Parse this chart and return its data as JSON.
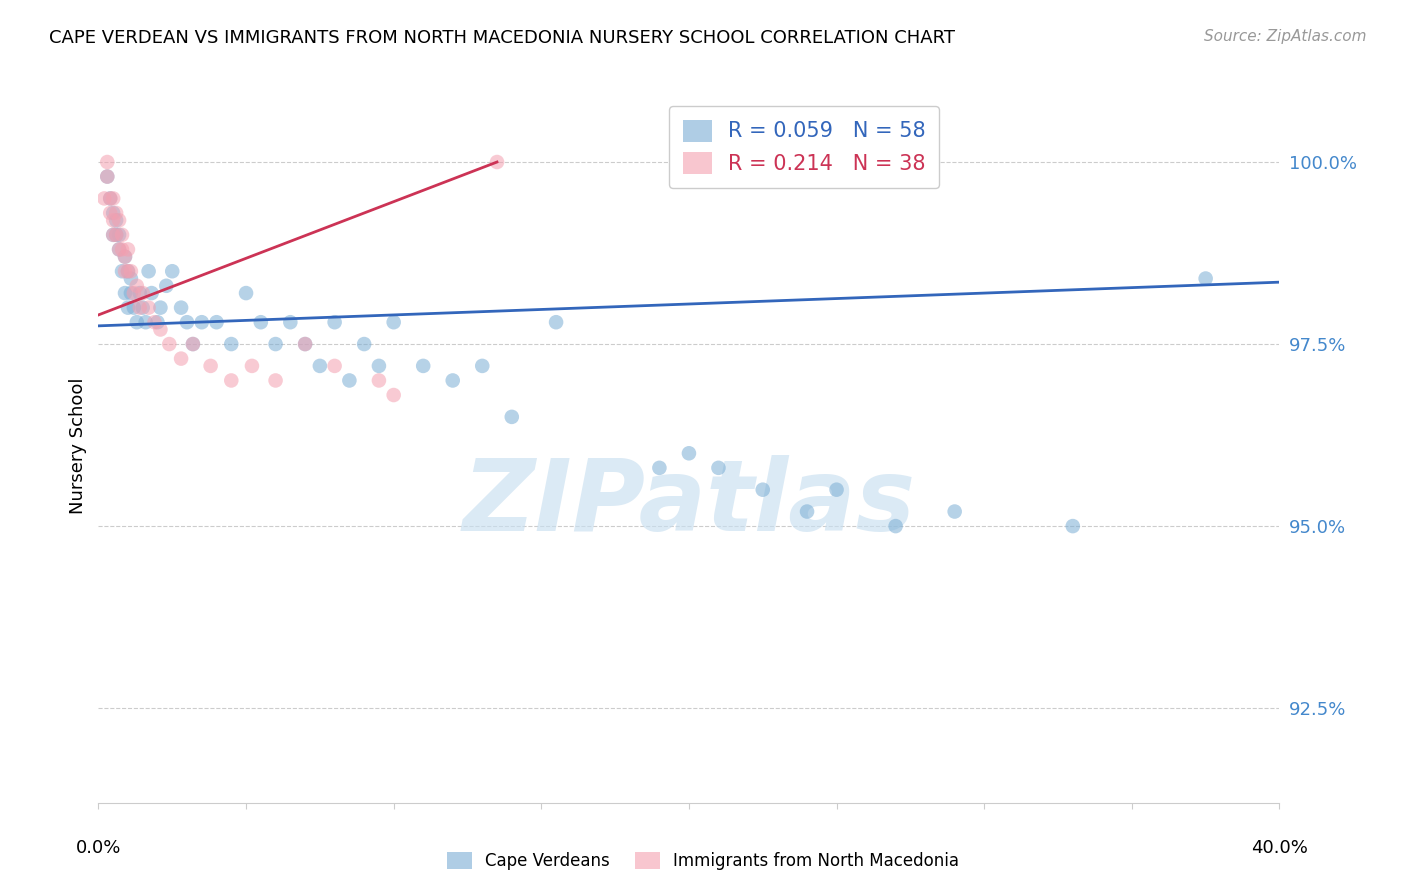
{
  "title": "CAPE VERDEAN VS IMMIGRANTS FROM NORTH MACEDONIA NURSERY SCHOOL CORRELATION CHART",
  "source": "Source: ZipAtlas.com",
  "ylabel": "Nursery School",
  "ytick_values": [
    92.5,
    95.0,
    97.5,
    100.0
  ],
  "xlim": [
    0.0,
    40.0
  ],
  "ylim": [
    91.2,
    101.0
  ],
  "blue_R": 0.059,
  "blue_N": 58,
  "pink_R": 0.214,
  "pink_N": 38,
  "blue_color": "#7AADD4",
  "pink_color": "#F4A0B0",
  "blue_line_color": "#3366BB",
  "pink_line_color": "#CC3355",
  "blue_legend_color": "#3366BB",
  "pink_legend_color": "#CC3355",
  "blue_x": [
    0.3,
    0.4,
    0.5,
    0.5,
    0.6,
    0.6,
    0.7,
    0.7,
    0.8,
    0.9,
    0.9,
    1.0,
    1.0,
    1.1,
    1.1,
    1.2,
    1.3,
    1.4,
    1.5,
    1.6,
    1.7,
    1.8,
    2.0,
    2.1,
    2.3,
    2.5,
    2.8,
    3.0,
    3.2,
    3.5,
    4.0,
    4.5,
    5.0,
    5.5,
    6.0,
    6.5,
    7.0,
    7.5,
    8.0,
    8.5,
    9.0,
    9.5,
    10.0,
    11.0,
    12.0,
    13.0,
    14.0,
    15.5,
    19.0,
    20.0,
    21.0,
    22.5,
    24.0,
    25.0,
    27.0,
    29.0,
    33.0,
    37.5
  ],
  "blue_y": [
    99.8,
    99.5,
    99.3,
    99.0,
    99.0,
    99.2,
    98.8,
    99.0,
    98.5,
    98.7,
    98.2,
    98.5,
    98.0,
    98.2,
    98.4,
    98.0,
    97.8,
    98.2,
    98.0,
    97.8,
    98.5,
    98.2,
    97.8,
    98.0,
    98.3,
    98.5,
    98.0,
    97.8,
    97.5,
    97.8,
    97.8,
    97.5,
    98.2,
    97.8,
    97.5,
    97.8,
    97.5,
    97.2,
    97.8,
    97.0,
    97.5,
    97.2,
    97.8,
    97.2,
    97.0,
    97.2,
    96.5,
    97.8,
    95.8,
    96.0,
    95.8,
    95.5,
    95.2,
    95.5,
    95.0,
    95.2,
    95.0,
    98.4
  ],
  "pink_x": [
    0.2,
    0.3,
    0.3,
    0.4,
    0.4,
    0.5,
    0.5,
    0.5,
    0.6,
    0.6,
    0.7,
    0.7,
    0.8,
    0.8,
    0.9,
    0.9,
    1.0,
    1.0,
    1.1,
    1.2,
    1.3,
    1.4,
    1.5,
    1.7,
    1.9,
    2.1,
    2.4,
    2.8,
    3.2,
    3.8,
    4.5,
    5.2,
    6.0,
    7.0,
    8.0,
    9.5,
    10.0,
    13.5
  ],
  "pink_y": [
    99.5,
    99.8,
    100.0,
    99.5,
    99.3,
    99.5,
    99.2,
    99.0,
    99.3,
    99.0,
    99.2,
    98.8,
    99.0,
    98.8,
    98.7,
    98.5,
    98.5,
    98.8,
    98.5,
    98.2,
    98.3,
    98.0,
    98.2,
    98.0,
    97.8,
    97.7,
    97.5,
    97.3,
    97.5,
    97.2,
    97.0,
    97.2,
    97.0,
    97.5,
    97.2,
    97.0,
    96.8,
    100.0
  ],
  "blue_trendline_x": [
    0.0,
    40.0
  ],
  "blue_trendline_y": [
    97.75,
    98.35
  ],
  "pink_trendline_x": [
    0.0,
    13.5
  ],
  "pink_trendline_y": [
    97.9,
    100.0
  ],
  "watermark_text": "ZIPatlas",
  "background_color": "#FFFFFF"
}
